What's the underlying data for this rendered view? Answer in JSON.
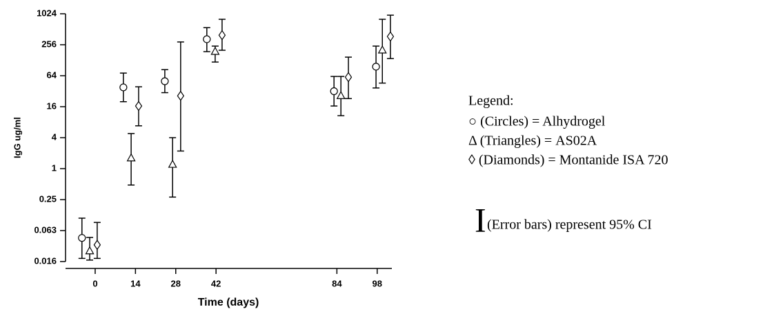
{
  "chart_data": {
    "type": "scatter",
    "ylabel": "IgG ug/ml",
    "xlabel": "Time (days)",
    "yscale": "log",
    "ylim": [
      0.015625,
      1024
    ],
    "yticks": [
      {
        "value": 0.015625,
        "label": "0.016"
      },
      {
        "value": 0.0625,
        "label": "0.063"
      },
      0.25,
      1,
      4,
      16,
      64,
      256,
      1024
    ],
    "xlim": [
      -10.3,
      103.1
    ],
    "xticks": [
      0,
      14,
      28,
      42,
      84,
      98
    ],
    "legend_title": "Legend:",
    "error_note_symbol": "I",
    "error_note": "(Error bars) represent 95% CI",
    "series": [
      {
        "name": "○ (Circles) = Alhydrogel",
        "marker": "circle",
        "color": "#000000",
        "x": [
          -4.6,
          9.8,
          24.2,
          38.8,
          83,
          97.6
        ],
        "values": [
          0.045,
          38,
          50,
          328,
          32,
          96
        ],
        "lower": [
          0.018,
          20,
          30,
          188,
          16.5,
          37
        ],
        "upper": [
          0.109,
          72,
          84,
          550,
          62,
          241
        ]
      },
      {
        "name": "Δ (Triangles)  = AS02A",
        "marker": "triangle",
        "color": "#000000",
        "x": [
          -1.9,
          12.5,
          26.9,
          41.7,
          85.4,
          99.8
        ],
        "values": [
          0.025,
          1.6,
          1.2,
          188,
          26,
          200
        ],
        "lower": [
          0.0167,
          0.48,
          0.28,
          118,
          10.7,
          46
        ],
        "upper": [
          0.046,
          4.8,
          4,
          241,
          62,
          800
        ]
      },
      {
        "name": "◊ (Diamonds) = Montanide ISA 720",
        "marker": "diamond",
        "color": "#000000",
        "x": [
          0.7,
          15.1,
          29.7,
          44.1,
          88,
          102.6
        ],
        "values": [
          0.033,
          16.5,
          26,
          393,
          60,
          370
        ],
        "lower": [
          0.018,
          6.8,
          2.2,
          200,
          23,
          138
        ],
        "upper": [
          0.09,
          39,
          290,
          800,
          147,
          962
        ]
      }
    ]
  }
}
